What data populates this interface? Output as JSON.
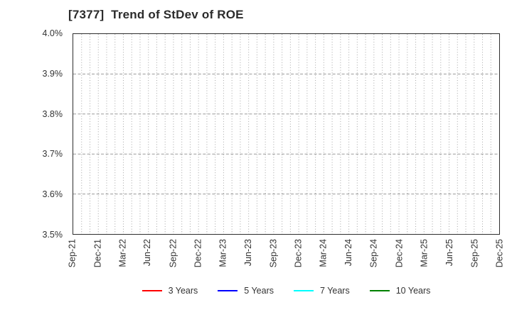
{
  "chart": {
    "title": "[7377]  Trend of StDev of ROE",
    "title_color": "#2b2b2b",
    "border_color": "#2e2e2e",
    "grid_color_vertical": "#a6a6a6",
    "grid_color_horizontal": "#9a9a9a",
    "tick_color": "#333333",
    "background": "#ffffff"
  },
  "chart_data": {
    "type": "line",
    "title": "[7377]  Trend of StDev of ROE",
    "x_tick_labels": [
      "Sep-21",
      "Dec-21",
      "Mar-22",
      "Jun-22",
      "Sep-22",
      "Dec-22",
      "Mar-23",
      "Jun-23",
      "Sep-23",
      "Dec-23",
      "Mar-24",
      "Jun-24",
      "Sep-24",
      "Dec-24",
      "Mar-25",
      "Jun-25",
      "Sep-25",
      "Dec-25"
    ],
    "x_minor_divisions_per_tick": 3,
    "y_tick_labels": [
      "4.0%",
      "3.9%",
      "3.8%",
      "3.7%",
      "3.6%",
      "3.5%"
    ],
    "ylim": [
      3.5,
      4.0
    ],
    "y_unit": "%",
    "grid": true,
    "legend_position": "bottom",
    "series": [
      {
        "name": "3 Years",
        "color": "#ff0000",
        "values": []
      },
      {
        "name": "5 Years",
        "color": "#0000ff",
        "values": []
      },
      {
        "name": "7 Years",
        "color": "#00ffff",
        "values": []
      },
      {
        "name": "10 Years",
        "color": "#008000",
        "values": []
      }
    ]
  }
}
